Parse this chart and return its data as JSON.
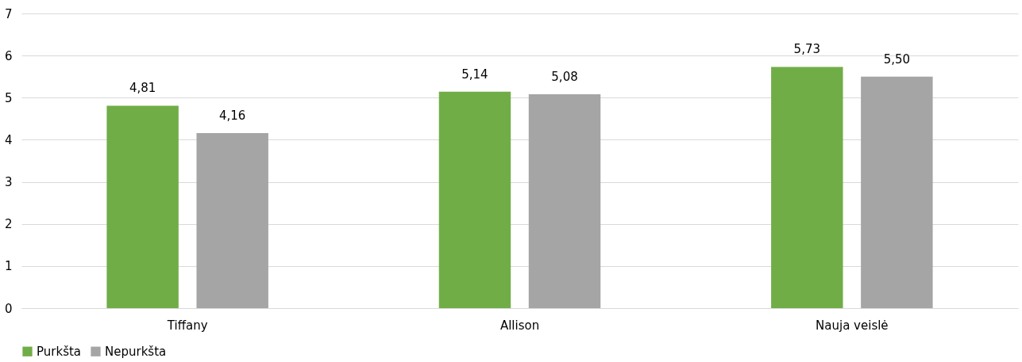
{
  "chart_data": {
    "type": "bar",
    "categories": [
      "Tiffany",
      "Allison",
      "Nauja veislė"
    ],
    "series": [
      {
        "name": "Purkšta",
        "color": "#70ad47",
        "values": [
          4.81,
          5.14,
          5.73
        ],
        "value_labels": [
          "4,81",
          "5,14",
          "5,73"
        ]
      },
      {
        "name": "Nepurkšta",
        "color": "#a5a5a5",
        "values": [
          4.16,
          5.08,
          5.5
        ],
        "value_labels": [
          "4,16",
          "5,08",
          "5,50"
        ]
      }
    ],
    "ylim": [
      0,
      7
    ],
    "yticks": [
      0,
      1,
      2,
      3,
      4,
      5,
      6,
      7
    ],
    "grid": "y",
    "legend": "bottom"
  }
}
